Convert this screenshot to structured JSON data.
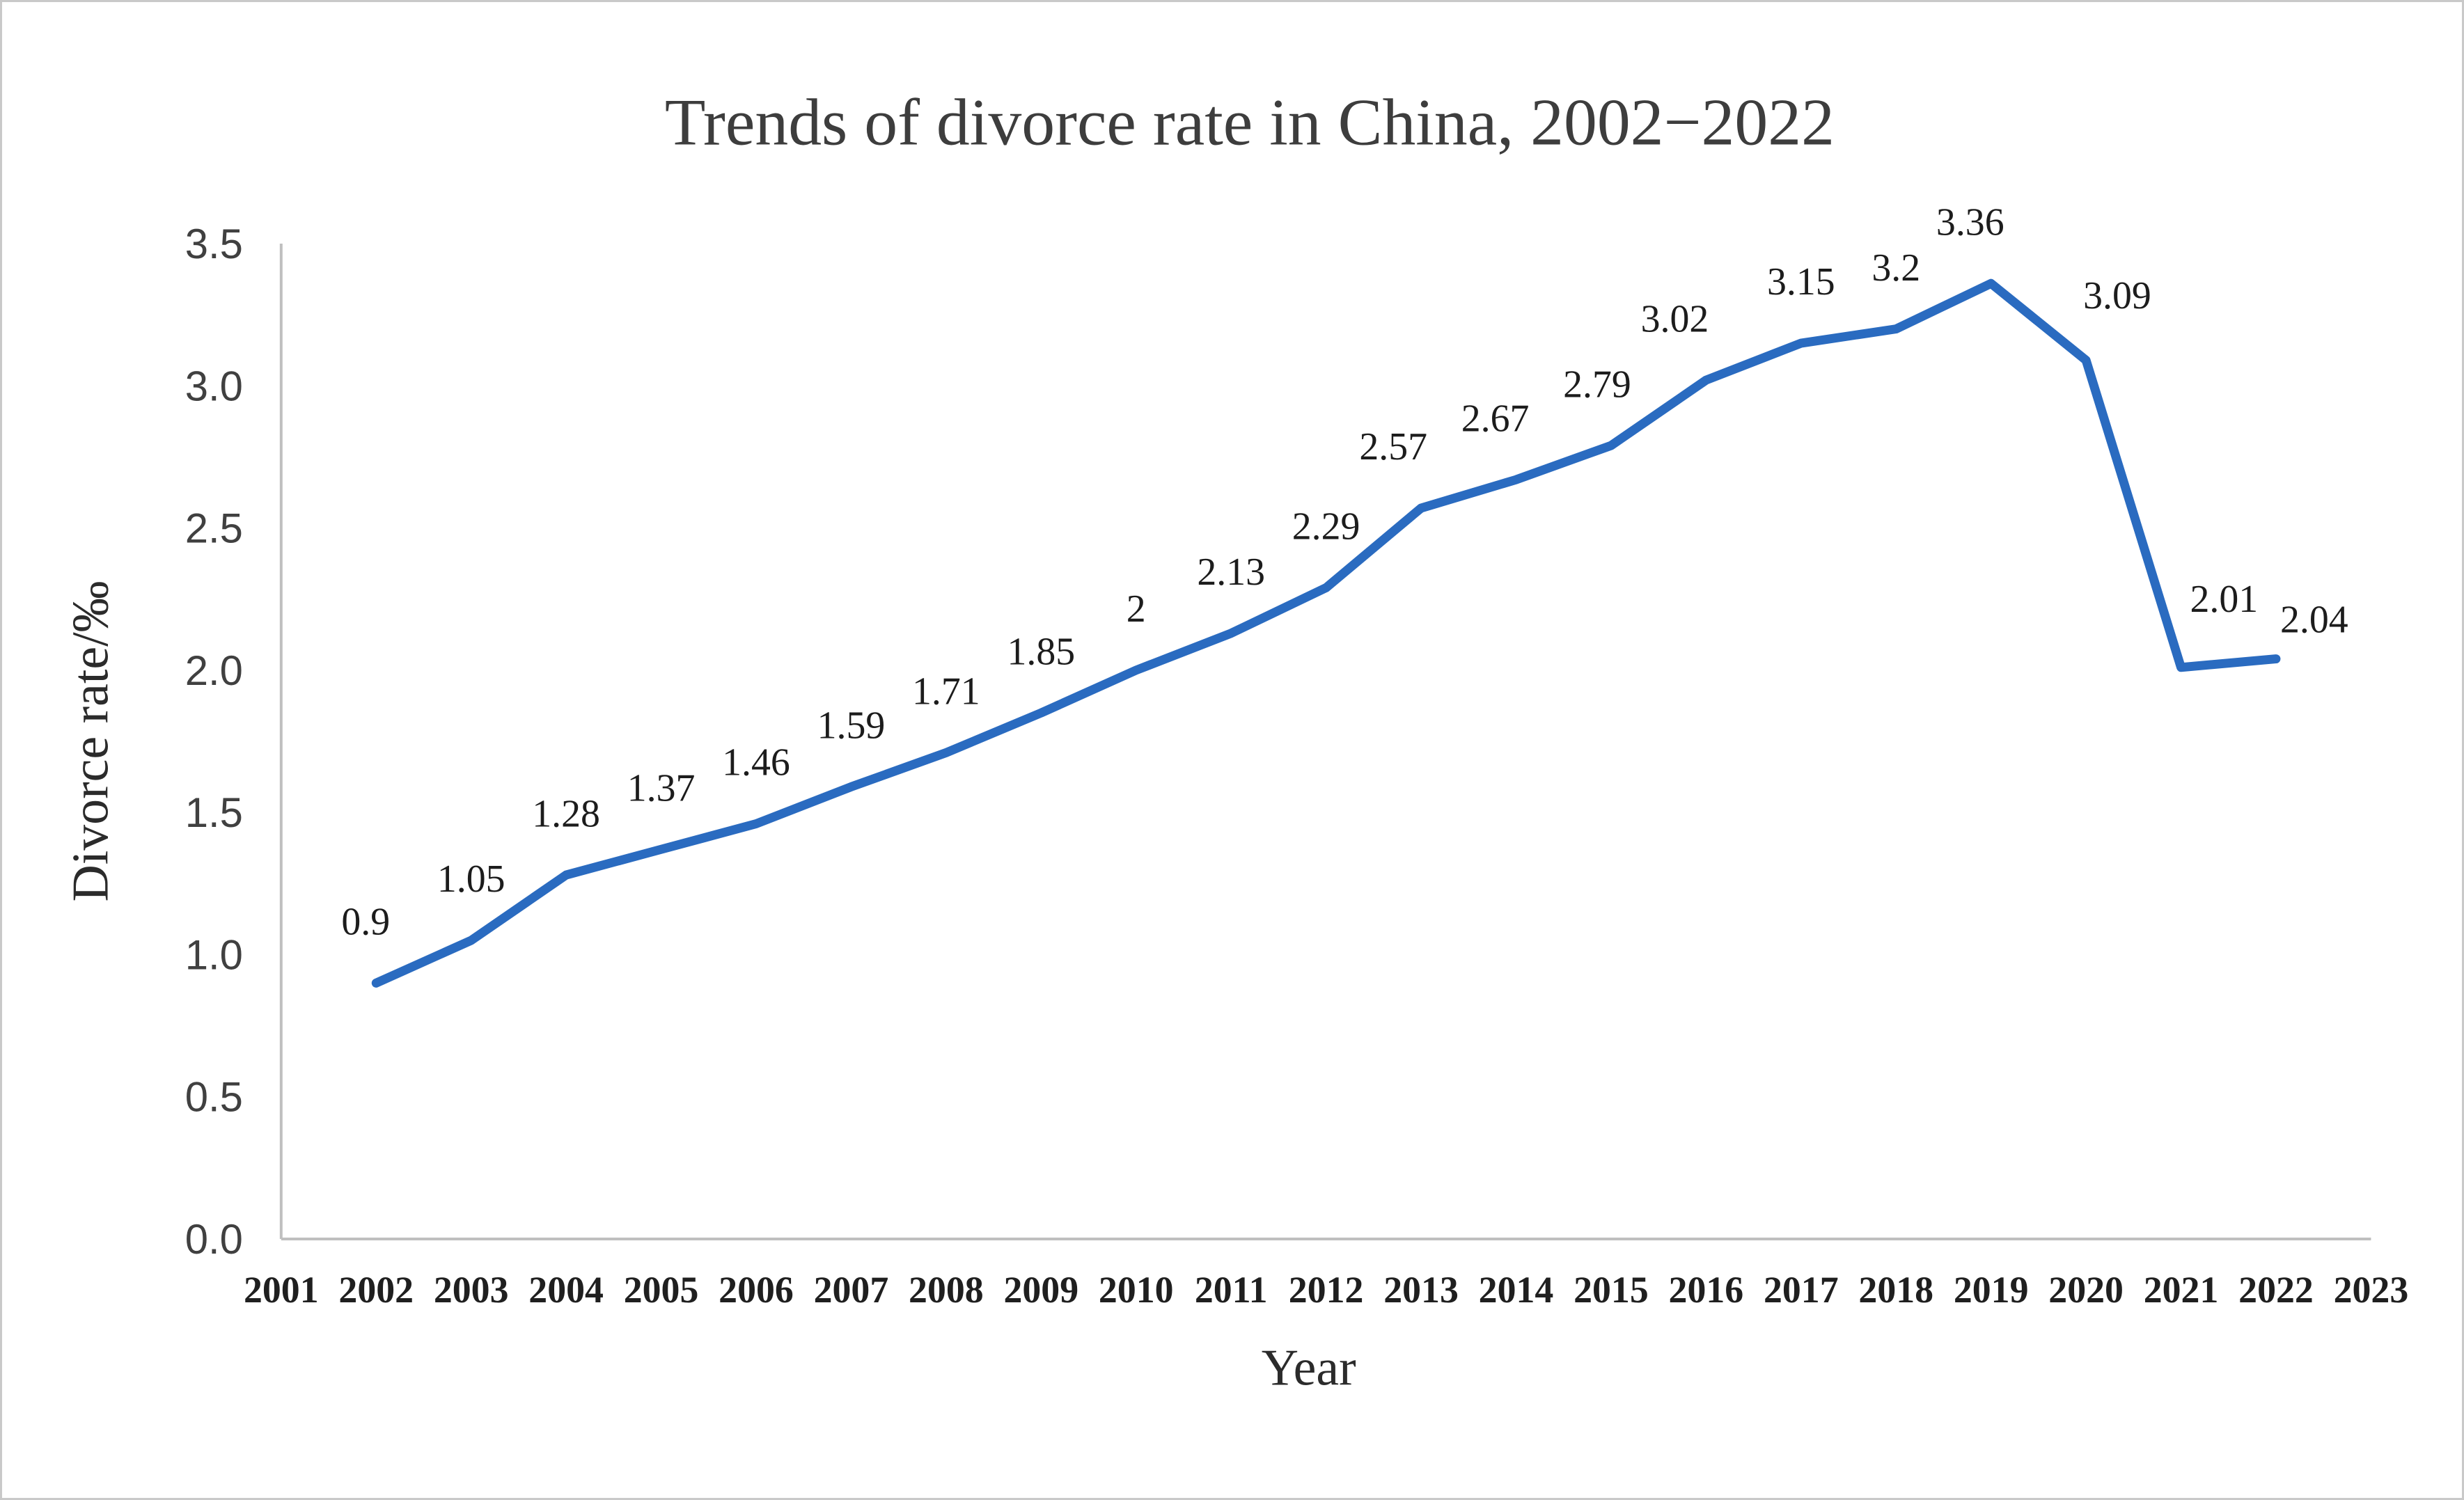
{
  "figure": {
    "background": "#ffffff",
    "border_color": "#c9c9c9"
  },
  "chart_data": {
    "type": "line",
    "title": "Trends of divorce rate in China, 2002−2022",
    "xlabel": "Year",
    "ylabel": "Divorce rate/‰",
    "x_tick_labels": [
      "2001",
      "2002",
      "2003",
      "2004",
      "2005",
      "2006",
      "2007",
      "2008",
      "2009",
      "2010",
      "2011",
      "2012",
      "2013",
      "2014",
      "2015",
      "2016",
      "2017",
      "2018",
      "2019",
      "2020",
      "2021",
      "2022",
      "2023"
    ],
    "y_tick_labels": [
      "0.0",
      "0.5",
      "1.0",
      "1.5",
      "2.0",
      "2.5",
      "3.0",
      "3.5"
    ],
    "xlim": [
      2001,
      2023
    ],
    "ylim": [
      0,
      3.5
    ],
    "grid": false,
    "legend": "none",
    "line_color": "#2a6bc0",
    "axis_color": "#bfbfbf",
    "series": [
      {
        "name": "Divorce rate",
        "x": [
          2002,
          2003,
          2004,
          2005,
          2006,
          2007,
          2008,
          2009,
          2010,
          2011,
          2012,
          2013,
          2014,
          2015,
          2016,
          2017,
          2018,
          2019,
          2020,
          2021,
          2022
        ],
        "values": [
          0.9,
          1.05,
          1.28,
          1.37,
          1.46,
          1.59,
          1.71,
          1.85,
          2,
          2.13,
          2.29,
          2.57,
          2.67,
          2.79,
          3.02,
          3.15,
          3.2,
          3.36,
          3.09,
          2.01,
          2.04
        ],
        "labels": [
          "0.9",
          "1.05",
          "1.28",
          "1.37",
          "1.46",
          "1.59",
          "1.71",
          "1.85",
          "2",
          "2.13",
          "2.29",
          "2.57",
          "2.67",
          "2.79",
          "3.02",
          "3.15",
          "3.2",
          "3.36",
          "3.09",
          "2.01",
          "2.04"
        ]
      }
    ]
  }
}
